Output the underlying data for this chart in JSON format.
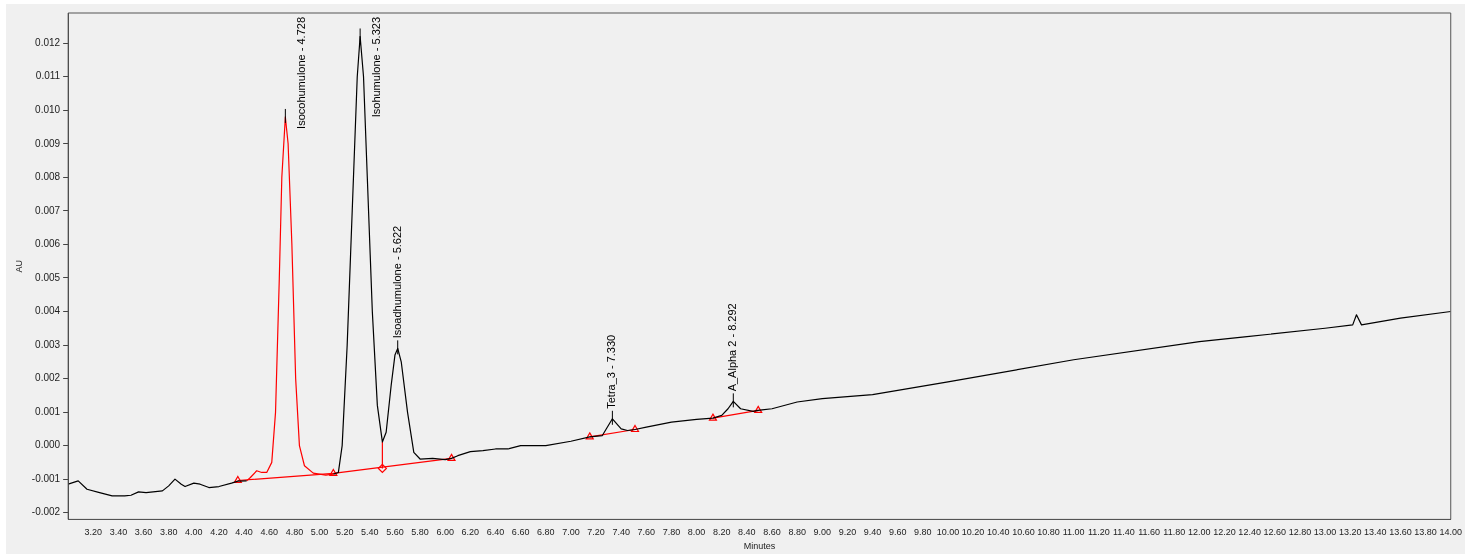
{
  "chart_data": {
    "type": "line",
    "xlabel": "Minutes",
    "ylabel": "AU",
    "grid": false,
    "legend": false,
    "line_style": "solid",
    "xlim": [
      3.0,
      14.0
    ],
    "ylim": [
      -0.0022,
      0.0129
    ],
    "xticks": [
      {
        "value": 3.2,
        "label": "3.20"
      },
      {
        "value": 3.4,
        "label": "3.40"
      },
      {
        "value": 3.6,
        "label": "3.60"
      },
      {
        "value": 3.8,
        "label": "3.80"
      },
      {
        "value": 4.0,
        "label": "4.00"
      },
      {
        "value": 4.2,
        "label": "4.20"
      },
      {
        "value": 4.4,
        "label": "4.40"
      },
      {
        "value": 4.6,
        "label": "4.60"
      },
      {
        "value": 4.8,
        "label": "4.80"
      },
      {
        "value": 5.0,
        "label": "5.00"
      },
      {
        "value": 5.2,
        "label": "5.20"
      },
      {
        "value": 5.4,
        "label": "5.40"
      },
      {
        "value": 5.6,
        "label": "5.60"
      },
      {
        "value": 5.8,
        "label": "5.80"
      },
      {
        "value": 6.0,
        "label": "6.00"
      },
      {
        "value": 6.2,
        "label": "6.20"
      },
      {
        "value": 6.4,
        "label": "6.40"
      },
      {
        "value": 6.6,
        "label": "6.60"
      },
      {
        "value": 6.8,
        "label": "6.80"
      },
      {
        "value": 7.0,
        "label": "7.00"
      },
      {
        "value": 7.2,
        "label": "7.20"
      },
      {
        "value": 7.4,
        "label": "7.40"
      },
      {
        "value": 7.6,
        "label": "7.60"
      },
      {
        "value": 7.8,
        "label": "7.80"
      },
      {
        "value": 8.0,
        "label": "8.00"
      },
      {
        "value": 8.2,
        "label": "8.20"
      },
      {
        "value": 8.4,
        "label": "8.40"
      },
      {
        "value": 8.6,
        "label": "8.60"
      },
      {
        "value": 8.8,
        "label": "8.80"
      },
      {
        "value": 9.0,
        "label": "9.00"
      },
      {
        "value": 9.2,
        "label": "9.20"
      },
      {
        "value": 9.4,
        "label": "9.40"
      },
      {
        "value": 9.6,
        "label": "9.60"
      },
      {
        "value": 9.8,
        "label": "9.80"
      },
      {
        "value": 10.0,
        "label": "10.00"
      },
      {
        "value": 10.2,
        "label": "10.20"
      },
      {
        "value": 10.4,
        "label": "10.40"
      },
      {
        "value": 10.6,
        "label": "10.60"
      },
      {
        "value": 10.8,
        "label": "10.80"
      },
      {
        "value": 11.0,
        "label": "11.00"
      },
      {
        "value": 11.2,
        "label": "11.20"
      },
      {
        "value": 11.4,
        "label": "11.40"
      },
      {
        "value": 11.6,
        "label": "11.60"
      },
      {
        "value": 11.8,
        "label": "11.80"
      },
      {
        "value": 12.0,
        "label": "12.00"
      },
      {
        "value": 12.2,
        "label": "12.20"
      },
      {
        "value": 12.4,
        "label": "12.40"
      },
      {
        "value": 12.6,
        "label": "12.60"
      },
      {
        "value": 12.8,
        "label": "12.80"
      },
      {
        "value": 13.0,
        "label": "13.00"
      },
      {
        "value": 13.2,
        "label": "13.20"
      },
      {
        "value": 13.4,
        "label": "13.40"
      },
      {
        "value": 13.6,
        "label": "13.60"
      },
      {
        "value": 13.8,
        "label": "13.80"
      },
      {
        "value": 14.0,
        "label": "14.00"
      }
    ],
    "yticks": [
      -0.002,
      -0.001,
      {
        "value": 0,
        "label": "0.000"
      },
      0.001,
      0.002,
      0.003,
      0.004,
      0.005,
      0.006,
      0.007,
      0.008,
      0.009,
      {
        "value": 0.01,
        "label": "0.010"
      },
      0.011,
      0.012
    ],
    "series": [
      {
        "type": "line",
        "marker": "none",
        "color": "#000000",
        "x": [
          3.0,
          3.08,
          3.15,
          3.25,
          3.35,
          3.45,
          3.5,
          3.56,
          3.62,
          3.75,
          3.8,
          3.85,
          3.9,
          3.93,
          4.0,
          4.05,
          4.12,
          4.2,
          4.3,
          4.35,
          4.42
        ],
        "values": [
          -0.00115,
          -0.00105,
          -0.0013,
          -0.0014,
          -0.0015,
          -0.0015,
          -0.00148,
          -0.00138,
          -0.0014,
          -0.00135,
          -0.0012,
          -0.001,
          -0.00115,
          -0.00122,
          -0.00112,
          -0.00115,
          -0.00125,
          -0.00122,
          -0.00112,
          -0.00106,
          -0.00105
        ]
      },
      {
        "type": "line",
        "marker": "none",
        "color": "#ff0000",
        "x": [
          4.42,
          4.45,
          4.5,
          4.54,
          4.58,
          4.62,
          4.65,
          4.68,
          4.7,
          4.728,
          4.75,
          4.78,
          4.81,
          4.84,
          4.88,
          4.95,
          5.05,
          5.11
        ],
        "values": [
          -0.00105,
          -0.00095,
          -0.00075,
          -0.0008,
          -0.0008,
          -0.0005,
          0.001,
          0.005,
          0.008,
          0.0098,
          0.009,
          0.006,
          0.002,
          0.0,
          -0.0006,
          -0.00082,
          -0.00088,
          -0.00085
        ]
      },
      {
        "type": "line",
        "marker": "none",
        "color": "#000000",
        "x": [
          5.11,
          5.15,
          5.18,
          5.22,
          5.26,
          5.3,
          5.323,
          5.35,
          5.38,
          5.42,
          5.46,
          5.5,
          5.53,
          5.57,
          5.6,
          5.622,
          5.65,
          5.7,
          5.75,
          5.8,
          5.9,
          6.0,
          6.05,
          6.1,
          6.2,
          6.3,
          6.4,
          6.5,
          6.6,
          6.8,
          7.0,
          7.15,
          7.25,
          7.33,
          7.4,
          7.45,
          7.51,
          7.6,
          7.8,
          8.0,
          8.13,
          8.2,
          8.25,
          8.292,
          8.35,
          8.45,
          8.49,
          8.6,
          8.8,
          9.0,
          9.4,
          10.0,
          11.0,
          12.0,
          12.36,
          13.0,
          13.22,
          13.25,
          13.29,
          13.6,
          14.0
        ],
        "values": [
          -0.00085,
          -0.0008,
          0.0,
          0.003,
          0.007,
          0.011,
          0.0122,
          0.011,
          0.008,
          0.004,
          0.0012,
          0.00011,
          0.0004,
          0.0018,
          0.0027,
          0.0029,
          0.0025,
          0.001,
          -0.0002,
          -0.0004,
          -0.00038,
          -0.00042,
          -0.00038,
          -0.0003,
          -0.00018,
          -0.00015,
          -0.0001,
          -0.0001,
          0.0,
          0.0,
          0.00013,
          0.00026,
          0.0003,
          0.0008,
          0.0005,
          0.00045,
          0.00048,
          0.00055,
          0.0007,
          0.00078,
          0.00082,
          0.0009,
          0.0011,
          0.00132,
          0.0011,
          0.00102,
          0.00105,
          0.0011,
          0.0013,
          0.0014,
          0.00152,
          0.0019,
          0.00256,
          0.0031,
          0.00324,
          0.0035,
          0.0036,
          0.0039,
          0.0036,
          0.0038,
          0.004
        ]
      },
      {
        "type": "line",
        "marker": "none",
        "color": "#ff0000",
        "x": [
          4.35,
          5.11,
          6.05
        ],
        "values": [
          -0.00104,
          -0.00083,
          -0.00038
        ]
      },
      {
        "type": "line",
        "marker": "none",
        "color": "#ff0000",
        "x": [
          5.5,
          5.5
        ],
        "values": [
          -0.00068,
          0.00011
        ]
      },
      {
        "type": "line",
        "marker": "none",
        "color": "#ff0000",
        "x": [
          7.15,
          7.51
        ],
        "values": [
          0.00026,
          0.00048
        ]
      },
      {
        "type": "line",
        "marker": "none",
        "color": "#ff0000",
        "x": [
          8.13,
          8.49
        ],
        "values": [
          0.00082,
          0.00105
        ]
      },
      {
        "type": "scatter",
        "marker": "triangle",
        "color": "#ff0000",
        "x": [
          4.35,
          5.11,
          6.05,
          7.15,
          7.51,
          8.13,
          8.49
        ],
        "values": [
          -0.00104,
          -0.00083,
          -0.00038,
          0.00026,
          0.00048,
          0.00082,
          0.00105
        ]
      },
      {
        "type": "scatter",
        "marker": "diamond",
        "color": "#ff0000",
        "x": [
          5.5
        ],
        "values": [
          -0.00068
        ]
      }
    ],
    "annotations": [
      {
        "text": "Isocohumulone - 4.728",
        "x": 4.728,
        "y": 0.0098
      },
      {
        "text": "Isohumulone - 5.323",
        "x": 5.323,
        "y": 0.0122
      },
      {
        "text": "Isoadhumulone - 5.622",
        "x": 5.622,
        "y": 0.0029
      },
      {
        "text": "Tetra_3 - 7.330",
        "x": 7.33,
        "y": 0.0008
      },
      {
        "text": "A_Alpha 2 - 8.292",
        "x": 8.292,
        "y": 0.00132
      }
    ]
  }
}
